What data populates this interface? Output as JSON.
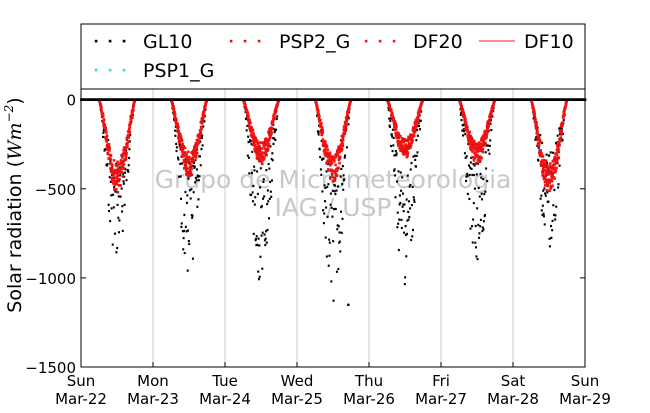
{
  "chart_data": {
    "type": "scatter",
    "title": "",
    "ylabel": "Solar radiation (Wm⁻²)",
    "ylabel_main": "Solar radiation (",
    "ylabel_unit": "Wm",
    "ylabel_exp": "−2",
    "ylabel_close": ")",
    "ylim": [
      -1500,
      60
    ],
    "yticks": [
      0,
      -500,
      -1000,
      -1500
    ],
    "ytick_labels": [
      "0",
      "−500",
      "−1000",
      "−1500"
    ],
    "xlim": [
      0,
      7
    ],
    "xticks": [
      {
        "day": "Sun",
        "date": "Mar-22"
      },
      {
        "day": "Mon",
        "date": "Mar-23"
      },
      {
        "day": "Tue",
        "date": "Mar-24"
      },
      {
        "day": "Wed",
        "date": "Mar-25"
      },
      {
        "day": "Thu",
        "date": "Mar-26"
      },
      {
        "day": "Fri",
        "date": "Mar-27"
      },
      {
        "day": "Sat",
        "date": "Mar-28"
      },
      {
        "day": "Sun",
        "date": "Mar-29"
      }
    ],
    "grid": "vertical",
    "legend_position": "top",
    "watermark": [
      "Grupo de Micrometeorologia",
      "IAG / USP"
    ],
    "series": [
      {
        "name": "GL10",
        "color": "#000000",
        "marker": "dot",
        "daily_peak": [
          -900,
          -1000,
          -1050,
          -1150,
          -1040,
          -940,
          -830
        ]
      },
      {
        "name": "PSP2_G",
        "color": "#dd1111",
        "marker": "dot",
        "daily_peak": [
          -480,
          -400,
          -330,
          -420,
          -290,
          -330,
          -480
        ]
      },
      {
        "name": "DF20",
        "color": "#ff1111",
        "marker": "dot",
        "daily_peak": [
          -460,
          -390,
          -320,
          -410,
          -300,
          -320,
          -470
        ]
      },
      {
        "name": "DF10",
        "color": "#ff6666",
        "marker": "line",
        "values": []
      },
      {
        "name": "PSP1_G",
        "color": "#33dddd",
        "marker": "dot",
        "values": []
      }
    ]
  }
}
